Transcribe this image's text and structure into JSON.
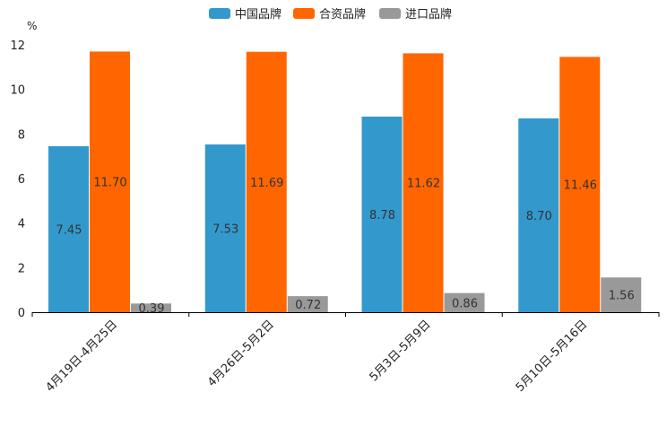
{
  "chart_data": {
    "type": "bar",
    "unit": "%",
    "categories": [
      "4月19日-4月25日",
      "4月26日-5月2日",
      "5月3日-5月9日",
      "5月10日-5月16日"
    ],
    "series": [
      {
        "name": "中国品牌",
        "color": "#3399cc",
        "values": [
          7.45,
          7.53,
          8.78,
          8.7
        ],
        "labels": [
          "7.45",
          "7.53",
          "8.78",
          "8.70"
        ]
      },
      {
        "name": "合资品牌",
        "color": "#ff6600",
        "values": [
          11.7,
          11.69,
          11.62,
          11.46
        ],
        "labels": [
          "11.70",
          "11.69",
          "11.62",
          "11.46"
        ]
      },
      {
        "name": "进口品牌",
        "color": "#999999",
        "values": [
          0.39,
          0.72,
          0.86,
          1.56
        ],
        "labels": [
          "0.39",
          "0.72",
          "0.86",
          "1.56"
        ]
      }
    ],
    "ylim": [
      0,
      12
    ],
    "yticks": [
      "0",
      "2",
      "4",
      "6",
      "8",
      "10",
      "12"
    ],
    "legend_position": "top-center"
  }
}
